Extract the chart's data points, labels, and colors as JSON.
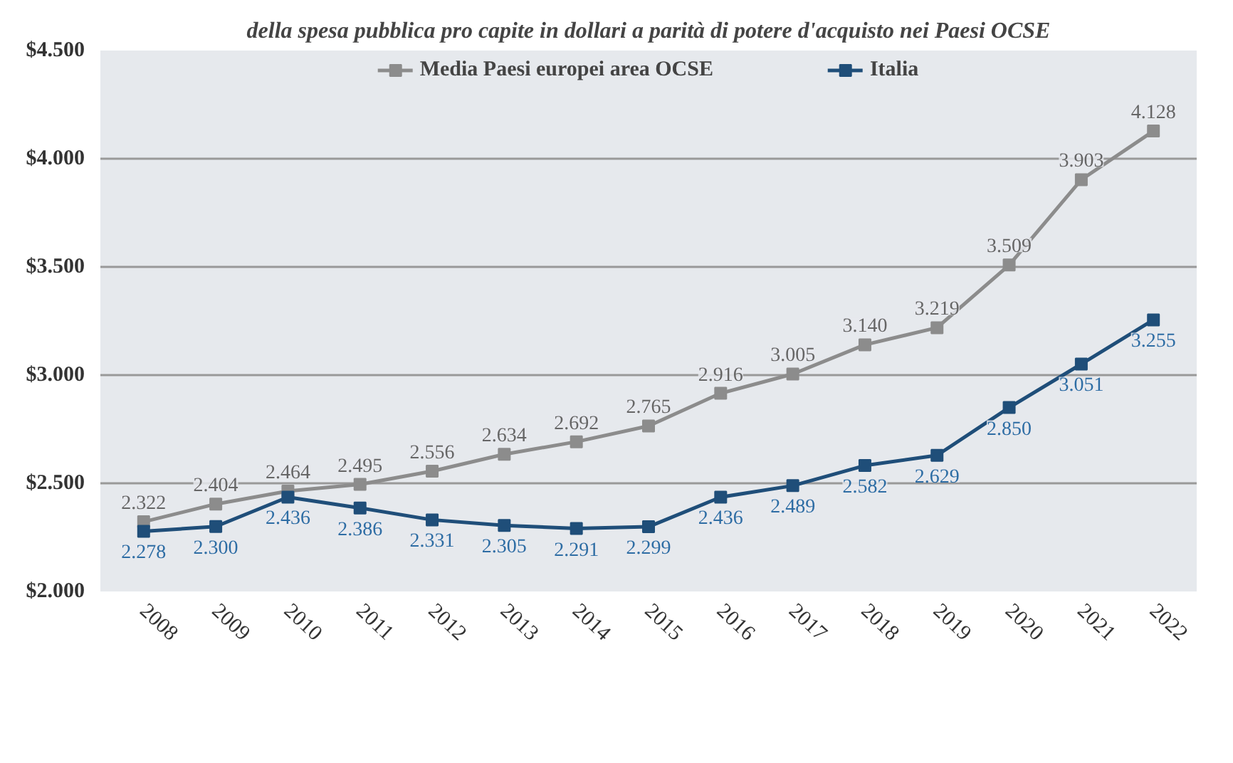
{
  "chart_data": {
    "type": "line",
    "title": "della spesa pubblica pro capite in dollari a parità di potere d'acquisto nei Paesi OCSE",
    "categories": [
      "2008",
      "2009",
      "2010",
      "2011",
      "2012",
      "2013",
      "2014",
      "2015",
      "2016",
      "2017",
      "2018",
      "2019",
      "2020",
      "2021",
      "2022"
    ],
    "series": [
      {
        "name": "Media Paesi europei area OCSE",
        "color": "#8c8c8c",
        "values": [
          2322,
          2404,
          2464,
          2495,
          2556,
          2634,
          2692,
          2765,
          2916,
          3005,
          3140,
          3219,
          3509,
          3903,
          4128
        ],
        "value_labels": [
          "2.322",
          "2.404",
          "2.464",
          "2.495",
          "2.556",
          "2.634",
          "2.692",
          "2.765",
          "2.916",
          "3.005",
          "3.140",
          "3.219",
          "3.509",
          "3.903",
          "4.128"
        ]
      },
      {
        "name": "Italia",
        "color": "#1f4e79",
        "values": [
          2278,
          2300,
          2436,
          2386,
          2331,
          2305,
          2291,
          2299,
          2436,
          2489,
          2582,
          2629,
          2850,
          3051,
          3255
        ],
        "value_labels": [
          "2.278",
          "2.300",
          "2.436",
          "2.386",
          "2.331",
          "2.305",
          "2.291",
          "2.299",
          "2.436",
          "2.489",
          "2.582",
          "2.629",
          "2.850",
          "3.051",
          "3.255"
        ]
      }
    ],
    "ylim": [
      2000,
      4500
    ],
    "yticks": [
      {
        "value": 2000,
        "label": "$2.000"
      },
      {
        "value": 2500,
        "label": "$2.500"
      },
      {
        "value": 3000,
        "label": "$3.000"
      },
      {
        "value": 3500,
        "label": "$3.500"
      },
      {
        "value": 4000,
        "label": "$4.000"
      },
      {
        "value": 4500,
        "label": "$4.500"
      }
    ],
    "grid": "y",
    "legend": "top",
    "marker": "square",
    "line_style": "solid"
  }
}
